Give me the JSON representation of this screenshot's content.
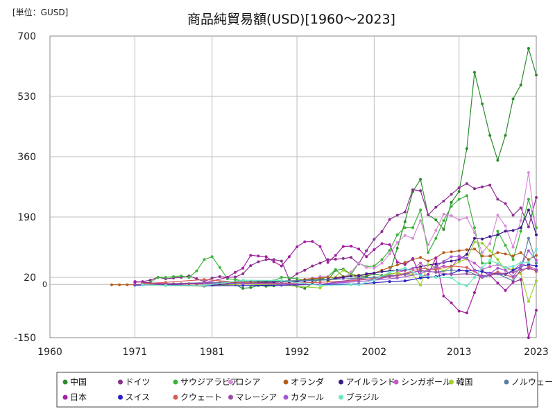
{
  "chart_data": {
    "type": "line",
    "title": "商品純貿易額(USD)[1960～2023]",
    "unit_label": "[単位：GUSD]",
    "zero_label": "0",
    "xlim": [
      1960,
      2023
    ],
    "ylim": [
      -150,
      700
    ],
    "x_ticks": [
      1960,
      1971,
      1981,
      1992,
      2002,
      2013,
      2023
    ],
    "y_ticks": [
      -150,
      20,
      190,
      360,
      530,
      700
    ],
    "grid": true,
    "legend_position": "bottom",
    "series": [
      {
        "name": "中国",
        "color": "#2e8b2e",
        "x": [
          1984,
          1985,
          1986,
          1987,
          1988,
          1989,
          1990,
          1991,
          1992,
          1993,
          1994,
          1995,
          1996,
          1997,
          1998,
          1999,
          2000,
          2001,
          2002,
          2003,
          2004,
          2005,
          2006,
          2007,
          2008,
          2009,
          2010,
          2011,
          2012,
          2013,
          2014,
          2015,
          2016,
          2017,
          2018,
          2019,
          2020,
          2021,
          2022,
          2023
        ],
        "y": [
          -1,
          -11,
          -9,
          -3,
          -5,
          -4,
          3,
          1,
          -5,
          -11,
          3,
          16,
          12,
          40,
          43,
          29,
          24,
          23,
          30,
          25,
          32,
          102,
          177,
          262,
          296,
          196,
          182,
          155,
          231,
          262,
          383,
          598,
          509,
          420,
          350,
          420,
          523,
          562,
          665,
          590
        ]
      },
      {
        "name": "ドイツ",
        "color": "#8b2f8f",
        "x": [
          1971,
          1972,
          1973,
          1974,
          1975,
          1976,
          1977,
          1978,
          1979,
          1980,
          1981,
          1982,
          1983,
          1984,
          1985,
          1986,
          1987,
          1988,
          1989,
          1990,
          1991,
          1992,
          1993,
          1994,
          1995,
          1996,
          1997,
          1998,
          1999,
          2000,
          2001,
          2002,
          2003,
          2004,
          2005,
          2006,
          2007,
          2008,
          2009,
          2010,
          2011,
          2012,
          2013,
          2014,
          2015,
          2016,
          2017,
          2018,
          2019,
          2020,
          2021,
          2022,
          2023
        ],
        "y": [
          6,
          8,
          12,
          20,
          16,
          18,
          20,
          24,
          16,
          8,
          18,
          22,
          20,
          21,
          30,
          53,
          64,
          70,
          70,
          66,
          14,
          30,
          40,
          52,
          60,
          70,
          71,
          73,
          76,
          58,
          95,
          127,
          149,
          183,
          195,
          204,
          267,
          264,
          196,
          218,
          235,
          254,
          272,
          284,
          270,
          275,
          280,
          240,
          228,
          195,
          216,
          162,
          245
        ]
      },
      {
        "name": "サウジアラビア",
        "color": "#3cb43c",
        "x": [
          1972,
          1973,
          1974,
          1975,
          1976,
          1977,
          1978,
          1979,
          1980,
          1981,
          1982,
          1983,
          1984,
          1985,
          1986,
          1987,
          1988,
          1989,
          1990,
          1991,
          1992,
          1993,
          1994,
          1995,
          1996,
          1997,
          1998,
          1999,
          2000,
          2001,
          2002,
          2003,
          2004,
          2005,
          2006,
          2007,
          2008,
          2009,
          2010,
          2011,
          2012,
          2013,
          2014,
          2015,
          2016,
          2017,
          2018,
          2019,
          2020,
          2021,
          2022,
          2023
        ],
        "y": [
          4,
          6,
          20,
          20,
          22,
          24,
          20,
          38,
          70,
          78,
          48,
          16,
          14,
          10,
          4,
          8,
          8,
          10,
          20,
          18,
          16,
          12,
          14,
          14,
          22,
          42,
          22,
          28,
          60,
          50,
          52,
          70,
          96,
          140,
          160,
          160,
          210,
          90,
          130,
          180,
          220,
          240,
          250,
          160,
          60,
          60,
          150,
          110,
          70,
          150,
          240,
          160
        ]
      },
      {
        "name": "ロシア",
        "color": "#d98cd9",
        "x": [
          1992,
          1993,
          1994,
          1995,
          1996,
          1997,
          1998,
          1999,
          2000,
          2001,
          2002,
          2003,
          2004,
          2005,
          2006,
          2007,
          2008,
          2009,
          2010,
          2011,
          2012,
          2013,
          2014,
          2015,
          2016,
          2017,
          2018,
          2019,
          2020,
          2021,
          2022,
          2023
        ],
        "y": [
          6,
          14,
          18,
          22,
          22,
          17,
          16,
          35,
          60,
          48,
          46,
          60,
          86,
          118,
          138,
          130,
          180,
          112,
          152,
          198,
          194,
          182,
          188,
          146,
          90,
          115,
          195,
          165,
          105,
          180,
          315,
          140
        ]
      },
      {
        "name": "オランダ",
        "color": "#b45f1e",
        "x": [
          1968,
          1969,
          1970,
          1971,
          1972,
          1973,
          1974,
          1975,
          1976,
          1977,
          1978,
          1979,
          1980,
          1981,
          1982,
          1983,
          1984,
          1985,
          1986,
          1987,
          1988,
          1989,
          1990,
          1991,
          1992,
          1993,
          1994,
          1995,
          1996,
          1997,
          1998,
          1999,
          2000,
          2001,
          2002,
          2003,
          2004,
          2005,
          2006,
          2007,
          2008,
          2009,
          2010,
          2011,
          2012,
          2013,
          2014,
          2015,
          2016,
          2017,
          2018,
          2019,
          2020,
          2021,
          2022,
          2023
        ],
        "y": [
          -1,
          -1,
          -1,
          -1,
          -1,
          1,
          2,
          3,
          2,
          2,
          2,
          1,
          1,
          3,
          5,
          6,
          5,
          6,
          8,
          8,
          7,
          8,
          10,
          8,
          10,
          14,
          16,
          18,
          20,
          20,
          22,
          24,
          26,
          28,
          32,
          40,
          48,
          55,
          62,
          70,
          76,
          66,
          75,
          90,
          92,
          95,
          98,
          100,
          80,
          80,
          90,
          86,
          80,
          90,
          70,
          82
        ]
      },
      {
        "name": "アイルランド",
        "color": "#3b1c8c",
        "x": [
          1981,
          1982,
          1983,
          1984,
          1985,
          1986,
          1987,
          1988,
          1989,
          1990,
          1991,
          1992,
          1993,
          1994,
          1995,
          1996,
          1997,
          1998,
          1999,
          2000,
          2001,
          2002,
          2003,
          2004,
          2005,
          2006,
          2007,
          2008,
          2009,
          2010,
          2011,
          2012,
          2013,
          2014,
          2015,
          2016,
          2017,
          2018,
          2019,
          2020,
          2021,
          2022,
          2023
        ],
        "y": [
          -2,
          -1,
          0,
          2,
          3,
          4,
          5,
          6,
          6,
          7,
          7,
          9,
          10,
          11,
          13,
          14,
          17,
          20,
          24,
          24,
          30,
          32,
          36,
          38,
          40,
          40,
          45,
          50,
          55,
          58,
          62,
          66,
          70,
          85,
          130,
          128,
          135,
          140,
          150,
          152,
          160,
          210,
          140
        ]
      },
      {
        "name": "シンガポール",
        "color": "#c45ac4",
        "x": [
          1992,
          1995,
          2000,
          2003,
          2005,
          2007,
          2008,
          2009,
          2010,
          2011,
          2012,
          2013,
          2014,
          2015,
          2016,
          2017,
          2018,
          2019,
          2020,
          2021,
          2022,
          2023
        ],
        "y": [
          -1,
          0,
          12,
          20,
          34,
          44,
          60,
          40,
          45,
          52,
          48,
          76,
          72,
          60,
          42,
          50,
          56,
          48,
          40,
          58,
          52,
          42
        ]
      },
      {
        "name": "韓国",
        "color": "#9bd22a",
        "x": [
          1972,
          1975,
          1980,
          1985,
          1990,
          1995,
          1998,
          2000,
          2002,
          2004,
          2005,
          2006,
          2007,
          2008,
          2009,
          2010,
          2011,
          2012,
          2013,
          2014,
          2015,
          2016,
          2017,
          2018,
          2019,
          2020,
          2021,
          2022,
          2023
        ],
        "y": [
          -1,
          -3,
          -5,
          1,
          -2,
          -10,
          40,
          16,
          15,
          30,
          32,
          28,
          28,
          -2,
          56,
          48,
          38,
          50,
          64,
          72,
          120,
          116,
          95,
          70,
          40,
          44,
          30,
          -48,
          10
        ]
      },
      {
        "name": "ノルウェー",
        "color": "#5a7fa0",
        "x": [
          1971,
          1975,
          1980,
          1985,
          1990,
          1995,
          2000,
          2002,
          2004,
          2006,
          2008,
          2010,
          2012,
          2014,
          2016,
          2018,
          2020,
          2021,
          2022,
          2023
        ],
        "y": [
          0,
          2,
          5,
          8,
          10,
          12,
          18,
          20,
          24,
          30,
          38,
          35,
          40,
          38,
          20,
          30,
          10,
          42,
          130,
          60
        ]
      },
      {
        "name": "日本",
        "color": "#a31fa3",
        "x": [
          1971,
          1975,
          1980,
          1983,
          1984,
          1985,
          1986,
          1987,
          1988,
          1989,
          1990,
          1991,
          1992,
          1993,
          1994,
          1995,
          1996,
          1997,
          1998,
          1999,
          2000,
          2001,
          2002,
          2003,
          2004,
          2005,
          2006,
          2007,
          2008,
          2009,
          2010,
          2011,
          2012,
          2013,
          2014,
          2015,
          2016,
          2017,
          2018,
          2019,
          2020,
          2021,
          2022,
          2023
        ],
        "y": [
          8,
          1,
          4,
          20,
          34,
          46,
          82,
          80,
          78,
          64,
          52,
          78,
          106,
          120,
          121,
          107,
          62,
          82,
          107,
          108,
          100,
          78,
          98,
          115,
          112,
          63,
          56,
          73,
          22,
          28,
          75,
          -33,
          -52,
          -75,
          -80,
          -23,
          37,
          26,
          4,
          -17,
          6,
          14,
          -150,
          -73
        ]
      },
      {
        "name": "スイス",
        "color": "#2a1fc8",
        "x": [
          1971,
          1975,
          1980,
          1985,
          1990,
          1995,
          2000,
          2002,
          2004,
          2006,
          2008,
          2009,
          2010,
          2011,
          2012,
          2013,
          2014,
          2015,
          2016,
          2017,
          2018,
          2019,
          2020,
          2021,
          2022,
          2023
        ],
        "y": [
          -2,
          -1,
          -4,
          -3,
          -2,
          0,
          1,
          5,
          8,
          10,
          18,
          20,
          22,
          28,
          30,
          40,
          38,
          40,
          36,
          32,
          30,
          28,
          40,
          50,
          56,
          52
        ]
      },
      {
        "name": "クウェート",
        "color": "#d65a5a",
        "x": [
          1972,
          1975,
          1980,
          1985,
          1990,
          1995,
          2000,
          2005,
          2008,
          2010,
          2012,
          2014,
          2016,
          2018,
          2020,
          2022,
          2023
        ],
        "y": [
          2,
          6,
          14,
          5,
          3,
          6,
          12,
          25,
          45,
          42,
          52,
          48,
          22,
          35,
          20,
          50,
          36
        ]
      },
      {
        "name": "マレーシア",
        "color": "#9a4fa6",
        "x": [
          1971,
          1975,
          1980,
          1985,
          1990,
          1995,
          2000,
          2002,
          2004,
          2006,
          2008,
          2010,
          2012,
          2014,
          2016,
          2018,
          2020,
          2021,
          2022,
          2023
        ],
        "y": [
          0,
          0,
          2,
          3,
          1,
          0,
          16,
          14,
          22,
          28,
          40,
          34,
          28,
          30,
          24,
          30,
          34,
          42,
          45,
          40
        ]
      },
      {
        "name": "カタール",
        "color": "#a25ad1",
        "x": [
          1980,
          1985,
          1990,
          1995,
          2000,
          2005,
          2008,
          2010,
          2011,
          2012,
          2013,
          2014,
          2015,
          2016,
          2017,
          2018,
          2019,
          2020,
          2021,
          2022,
          2023
        ],
        "y": [
          4,
          2,
          1,
          1,
          8,
          18,
          30,
          50,
          65,
          78,
          80,
          74,
          40,
          20,
          30,
          46,
          40,
          22,
          50,
          95,
          68
        ]
      },
      {
        "name": "ブラジル",
        "color": "#6ae8c6",
        "x": [
          1972,
          1975,
          1980,
          1985,
          1990,
          1995,
          1999,
          2000,
          2002,
          2004,
          2006,
          2008,
          2010,
          2012,
          2013,
          2014,
          2015,
          2016,
          2017,
          2018,
          2019,
          2020,
          2021,
          2022,
          2023
        ],
        "y": [
          -1,
          -3,
          -3,
          12,
          11,
          -3,
          -1,
          -1,
          13,
          34,
          46,
          25,
          20,
          19,
          2,
          -4,
          20,
          48,
          68,
          59,
          48,
          51,
          61,
          62,
          99
        ]
      }
    ]
  }
}
